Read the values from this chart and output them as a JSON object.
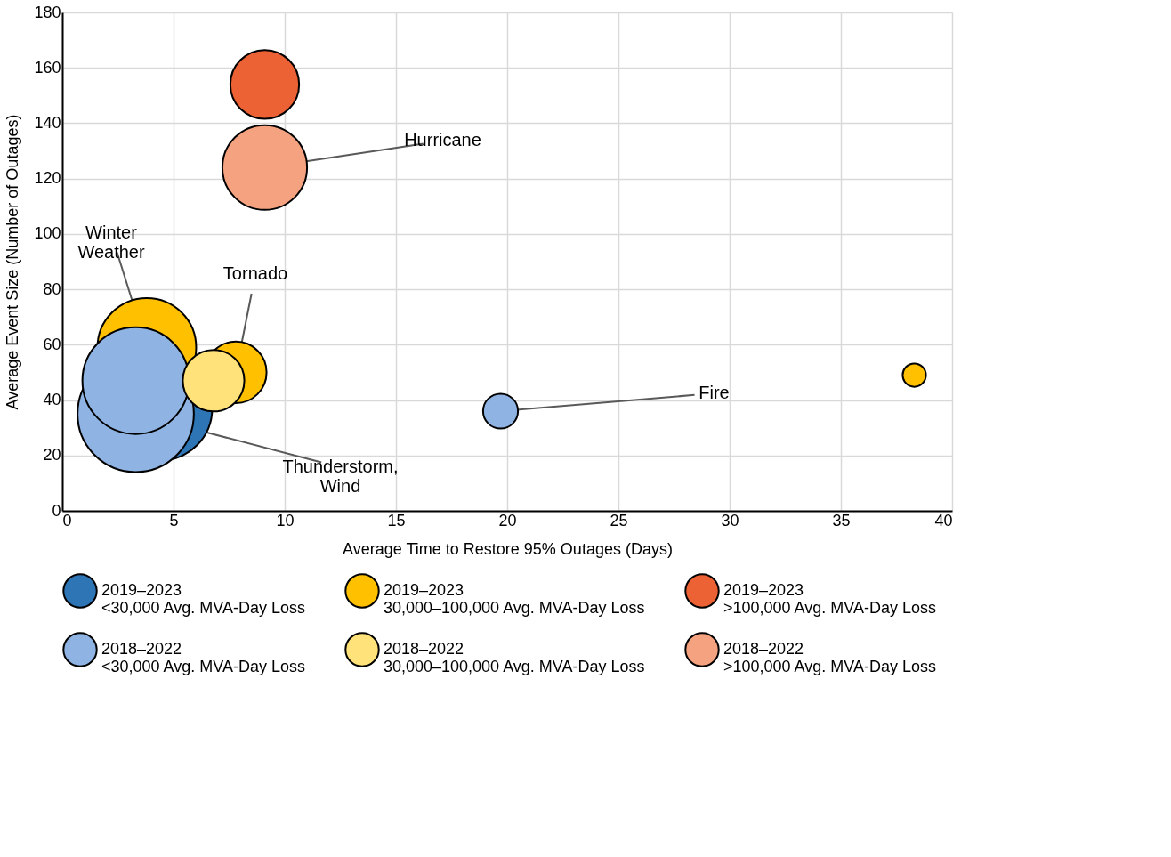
{
  "chart_data": {
    "type": "bubble",
    "xlabel": "Average Time to Restore 95% Outages (Days)",
    "ylabel": "Average Event Size (Number of Outages)",
    "xlim": [
      0,
      40
    ],
    "xticks": [
      0,
      5,
      10,
      15,
      20,
      25,
      30,
      35,
      40
    ],
    "ylim": [
      0,
      180
    ],
    "yticks": [
      0,
      20,
      40,
      60,
      80,
      100,
      120,
      140,
      160,
      180
    ],
    "grid": true,
    "legend": "bottom",
    "series": [
      {
        "name": "2019–2023\n<30,000 Avg. MVA-Day Loss",
        "color": "#2e75b6",
        "x": [
          4.4
        ],
        "values": [
          37
        ],
        "sizes": [
          0.8
        ]
      },
      {
        "name": "2019–2023\n30,000–100,000 Avg. MVA-Day Loss",
        "color": "#ffc000",
        "x": [
          3.8,
          7.8,
          38.3
        ],
        "values": [
          59,
          50,
          49
        ],
        "sizes": [
          0.72,
          0.28,
          0.04
        ]
      },
      {
        "name": "2019–2023\n>100,000 Avg. MVA-Day Loss",
        "color": "#ed6234",
        "x": [
          9.1
        ],
        "values": [
          154
        ],
        "sizes": [
          0.35
        ]
      },
      {
        "name": "2018–2022\n<30,000 Avg. MVA-Day Loss",
        "color": "#8fb4e3",
        "x": [
          3.3,
          3.3,
          19.7
        ],
        "values": [
          35,
          47,
          36
        ],
        "sizes": [
          1,
          0.84,
          0.09
        ]
      },
      {
        "name": "2018–2022\n30,000–100,000 Avg. MVA-Day Loss",
        "color": "#ffe27a",
        "x": [
          6.8
        ],
        "values": [
          47
        ],
        "sizes": [
          0.28
        ]
      },
      {
        "name": "2018–2022\n>100,000 Avg. MVA-Day Loss",
        "color": "#f4a27f",
        "x": [
          9.1
        ],
        "values": [
          124
        ],
        "sizes": [
          0.53
        ]
      }
    ],
    "annotations": [
      {
        "text": "Hurricane",
        "x": 9.1,
        "y": 124
      },
      {
        "text": "Winter\nWeather",
        "x": 3.8,
        "y": 59
      },
      {
        "text": "Tornado",
        "x": 7.8,
        "y": 50
      },
      {
        "text": "Thunderstorm,\nWind",
        "x": 3.3,
        "y": 35
      },
      {
        "text": "Fire",
        "x": 19.7,
        "y": 36
      }
    ]
  }
}
